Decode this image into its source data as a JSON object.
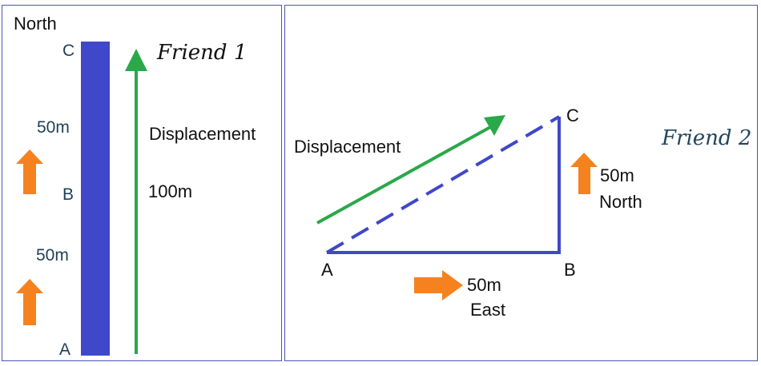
{
  "left": {
    "direction_label": "North",
    "points": {
      "a": "A",
      "b": "B",
      "c": "C"
    },
    "segment_upper": "50m",
    "segment_lower": "50m",
    "friend_label": "Friend 1",
    "displacement_label": "Displacement",
    "displacement_value": "100m"
  },
  "right": {
    "friend_label": "Friend 2",
    "displacement_label": "Displacement",
    "points": {
      "a": "A",
      "b": "B",
      "c": "C"
    },
    "east_distance": "50m",
    "east_label": "East",
    "north_distance": "50m",
    "north_label": "North"
  },
  "colors": {
    "path": "#3f48c8",
    "displacement": "#2aa84a",
    "direction_arrow": "#f5821f",
    "border": "#4a55b8"
  }
}
